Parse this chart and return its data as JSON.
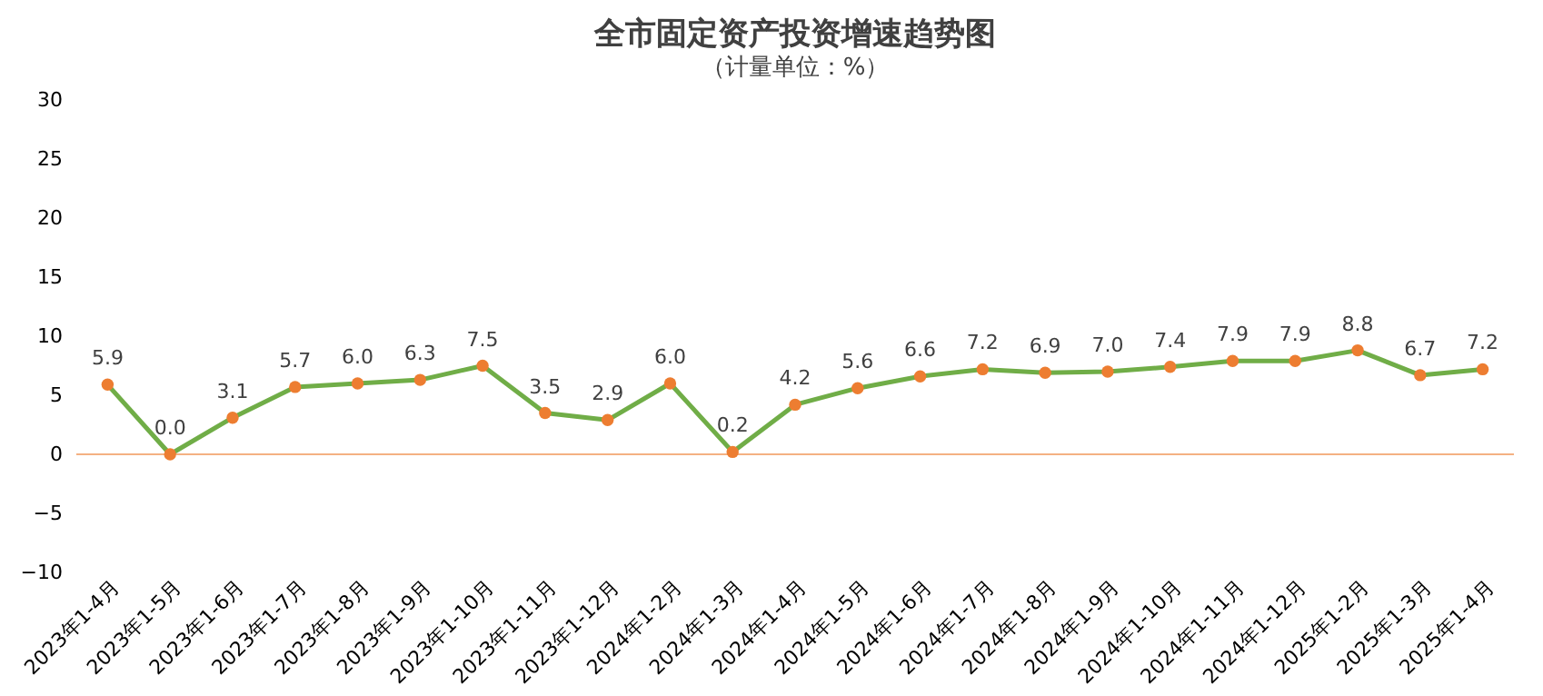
{
  "chart_data": {
    "type": "line",
    "title": "全市固定资产投资增速趋势图",
    "subtitle": "（计量单位：%）",
    "categories": [
      "2023年1-4月",
      "2023年1-5月",
      "2023年1-6月",
      "2023年1-7月",
      "2023年1-8月",
      "2023年1-9月",
      "2023年1-10月",
      "2023年1-11月",
      "2023年1-12月",
      "2024年1-2月",
      "2024年1-3月",
      "2024年1-4月",
      "2024年1-5月",
      "2024年1-6月",
      "2024年1-7月",
      "2024年1-8月",
      "2024年1-9月",
      "2024年1-10月",
      "2024年1-11月",
      "2024年1-12月",
      "2025年1-2月",
      "2025年1-3月",
      "2025年1-4月"
    ],
    "series": [
      {
        "color": "#70ad47",
        "marker": "none",
        "values": [
          5.9,
          0.0,
          3.1,
          5.7,
          6.0,
          6.3,
          7.5,
          3.5,
          2.9,
          6.0,
          0.2,
          4.2,
          5.6,
          6.6,
          7.2,
          6.9,
          7.0,
          7.4,
          7.9,
          7.9,
          8.8,
          6.7,
          7.2
        ]
      },
      {
        "type": "scatter",
        "color": "#ed7d31",
        "marker": "circle",
        "values": [
          5.9,
          0.0,
          3.1,
          5.7,
          6.0,
          6.3,
          7.5,
          3.5,
          2.9,
          6.0,
          0.2,
          4.2,
          5.6,
          6.6,
          7.2,
          6.9,
          7.0,
          7.4,
          7.9,
          7.9,
          8.8,
          6.7,
          7.2
        ],
        "value_labels": [
          "5.9",
          "0.0",
          "3.1",
          "5.7",
          "6.0",
          "6.3",
          "7.5",
          "3.5",
          "2.9",
          "6.0",
          "0.2",
          "4.2",
          "5.6",
          "6.6",
          "7.2",
          "6.9",
          "7.0",
          "7.4",
          "7.9",
          "7.9",
          "8.8",
          "6.7",
          "7.2"
        ]
      }
    ],
    "ylim": [
      -10,
      30
    ],
    "yticks": [
      -10,
      -5,
      0,
      5,
      10,
      15,
      20,
      25,
      30
    ],
    "grid": false,
    "line_style": "solid",
    "ref_lines": [
      {
        "axis": "y",
        "value": 0,
        "color": "#f4b183"
      }
    ]
  }
}
